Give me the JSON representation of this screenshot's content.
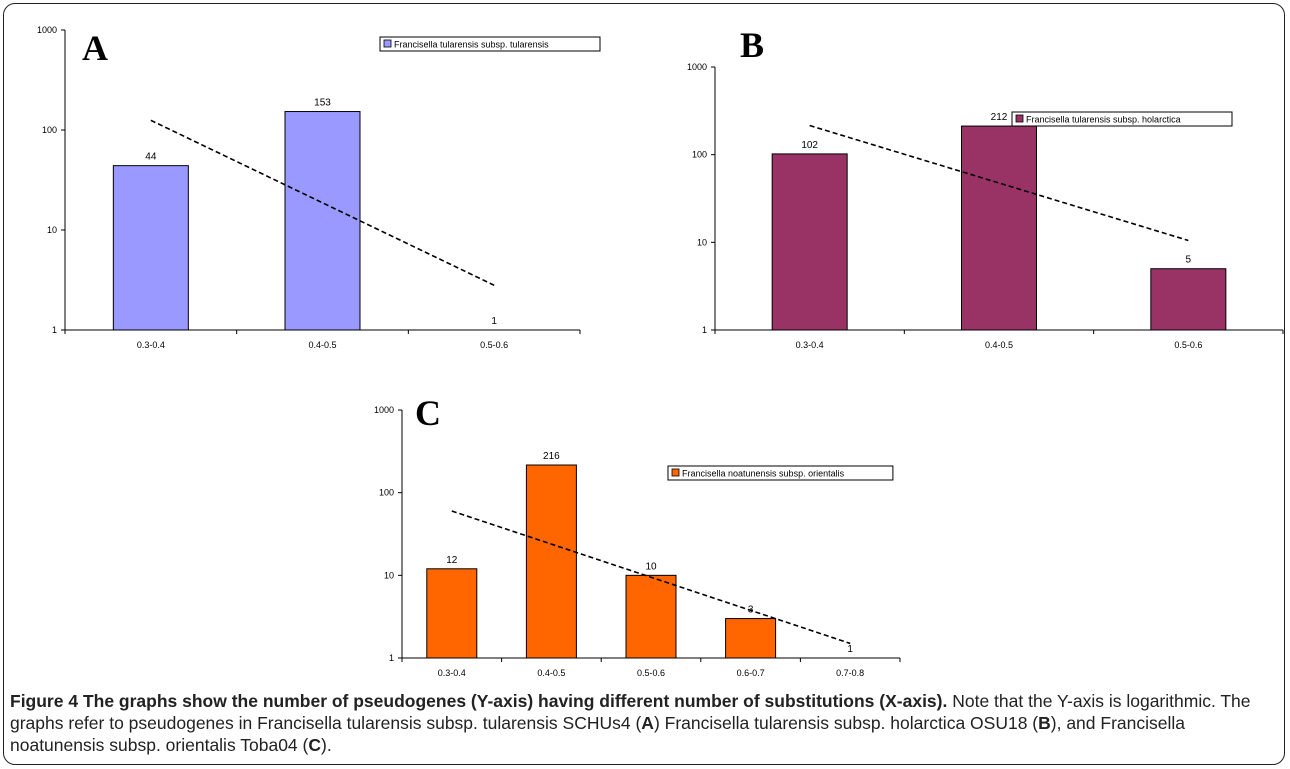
{
  "chart_data": [
    {
      "panel_letter": "A",
      "type": "bar",
      "yscale": "log",
      "ylim": [
        1,
        1000
      ],
      "y_ticks": [
        "1",
        "10",
        "100",
        "1000"
      ],
      "categories": [
        "0.3-0.4",
        "0.4-0.5",
        "0.5-0.6"
      ],
      "series": [
        {
          "name": "Francisella tularensis subsp. tularensis",
          "values": [
            44,
            153,
            1
          ],
          "data_labels": [
            "44",
            "153",
            "1"
          ],
          "color": "#9999ff"
        }
      ],
      "trendline": {
        "style": "dashed",
        "from": 125,
        "to": 2.8
      },
      "legend": "top-right",
      "grid": false
    },
    {
      "panel_letter": "B",
      "type": "bar",
      "yscale": "log",
      "ylim": [
        1,
        1000
      ],
      "y_ticks": [
        "1",
        "10",
        "100",
        "1000"
      ],
      "categories": [
        "0.3-0.4",
        "0.4-0.5",
        "0.5-0.6"
      ],
      "series": [
        {
          "name": "Francisella tularensis subsp. holarctica",
          "values": [
            102,
            212,
            5
          ],
          "data_labels": [
            "102",
            "212",
            "5"
          ],
          "color": "#993366"
        }
      ],
      "trendline": {
        "style": "dashed",
        "from": 215,
        "to": 10.5
      },
      "legend": "top-right",
      "grid": false
    },
    {
      "panel_letter": "C",
      "type": "bar",
      "yscale": "log",
      "ylim": [
        1,
        1000
      ],
      "y_ticks": [
        "1",
        "10",
        "100",
        "1000"
      ],
      "categories": [
        "0.3-0.4",
        "0.4-0.5",
        "0.5-0.6",
        "0.6-0.7",
        "0.7-0.8"
      ],
      "series": [
        {
          "name": "Francisella noatunensis subsp. orientalis",
          "values": [
            12,
            216,
            10,
            3,
            1
          ],
          "data_labels": [
            "12",
            "216",
            "10",
            "3",
            "1"
          ],
          "color": "#ff6600"
        }
      ],
      "trendline": {
        "style": "dashed",
        "from": 60,
        "to": 1.5
      },
      "legend": "top-right",
      "grid": false
    }
  ],
  "caption": {
    "label": "Figure 4",
    "bold_sentence": "The graphs show the number of pseudogenes (Y-axis) having different number of substitutions (X-axis).",
    "text_1": " Note that the Y-axis is logarithmic. The graphs refer to pseudogenes in Francisella tularensis subsp. tularensis SCHUs4 (",
    "ref_a": "A",
    "text_2": ") Francisella tularensis subsp. holarctica OSU18 (",
    "ref_b": "B",
    "text_3": "), and  Francisella noatunensis subsp. orientalis Toba04 (",
    "ref_c": "C",
    "text_4": ")."
  }
}
